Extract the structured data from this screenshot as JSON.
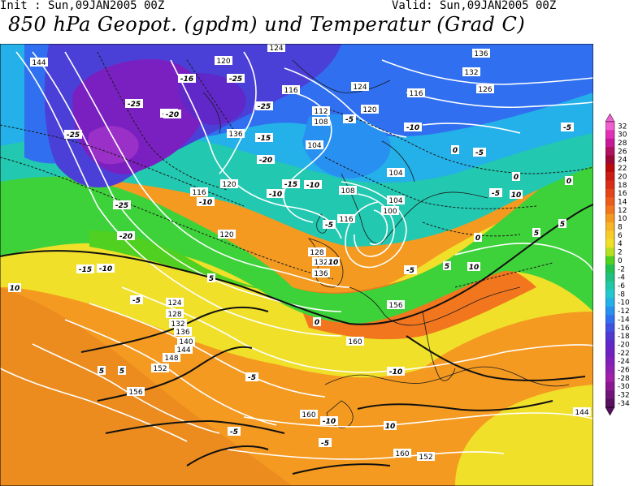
{
  "header": {
    "init": "Init : Sun,09JAN2005 00Z",
    "valid": "Valid: Sun,09JAN2005 00Z",
    "title": "850 hPa Geopot. (gpdm) und Temperatur (Grad C)"
  },
  "legend": {
    "labels": [
      "32",
      "30",
      "28",
      "26",
      "24",
      "22",
      "20",
      "18",
      "16",
      "14",
      "12",
      "10",
      "8",
      "6",
      "4",
      "2",
      "0",
      "-2",
      "-4",
      "-6",
      "-8",
      "-10",
      "-12",
      "-14",
      "-16",
      "-18",
      "-20",
      "-22",
      "-24",
      "-26",
      "-28",
      "-30",
      "-32",
      "-34"
    ],
    "colors": [
      "#f060d0",
      "#e030b8",
      "#c81898",
      "#b01060",
      "#9a0838",
      "#b80a0a",
      "#c81c14",
      "#d82e18",
      "#e4441a",
      "#ec5c1c",
      "#f2761e",
      "#f59a20",
      "#f7b625",
      "#f8cc28",
      "#f0e02a",
      "#b8e020",
      "#50d020",
      "#22c050",
      "#20c080",
      "#20c8a8",
      "#22c8d0",
      "#24b0e8",
      "#2890f0",
      "#3070f0",
      "#4050e0",
      "#5038d0",
      "#6028c8",
      "#7020c0",
      "#8020b8",
      "#9020b0",
      "#a020a8",
      "#8a1890",
      "#701478",
      "#581060"
    ]
  },
  "map_labels": {
    "geopotential": [
      "144",
      "120",
      "124",
      "136",
      "132",
      "126",
      "116",
      "124",
      "120",
      "116",
      "112",
      "108",
      "104",
      "120",
      "116",
      "104",
      "108",
      "104",
      "100",
      "116",
      "120",
      "128",
      "132",
      "136",
      "124",
      "156",
      "128",
      "132",
      "136",
      "140",
      "144",
      "148",
      "152",
      "156",
      "160",
      "160",
      "160",
      "152",
      "144",
      "136"
    ],
    "temperature": [
      "-25",
      "-15",
      "-16",
      "-25",
      "-25",
      "-20",
      "-25",
      "-25",
      "-20",
      "-15",
      "-10",
      "-5",
      "-10",
      "-10",
      "-15",
      "-20",
      "-15",
      "-10",
      "-5",
      "-5",
      "-10",
      "-5",
      "0",
      "-5",
      "0",
      "5",
      "10",
      "5",
      "0",
      "-5",
      "10",
      "5",
      "10",
      "5",
      "5",
      "0",
      "-5",
      "-10",
      "-10",
      "-5",
      "-5",
      "10",
      "10",
      "5",
      "0",
      "-5"
    ]
  }
}
